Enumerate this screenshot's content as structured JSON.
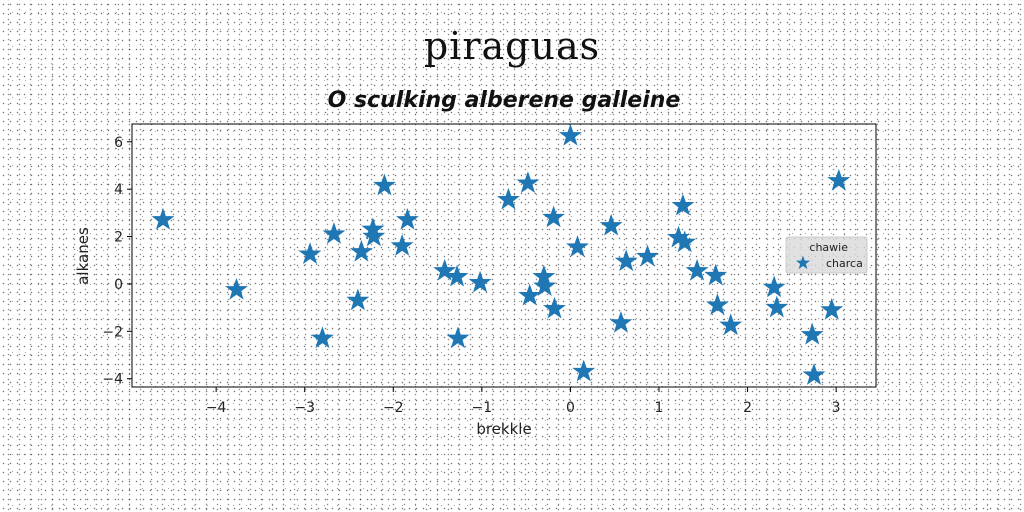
{
  "chart_data": {
    "type": "scatter",
    "suptitle": "piraguas",
    "title": "O sculking alberene galleine",
    "xlabel": "brekkle",
    "ylabel": "alkanes",
    "xlim": [
      -4.95,
      3.45
    ],
    "ylim": [
      -4.35,
      6.75
    ],
    "xticks": [
      -4,
      -3,
      -2,
      -1,
      0,
      1,
      2,
      3
    ],
    "yticks": [
      -4,
      -2,
      0,
      2,
      4,
      6
    ],
    "grid": false,
    "marker": "star",
    "color": "#1f77b4",
    "legend": {
      "placement": "right",
      "title": "chawie",
      "entries": [
        "charca"
      ]
    },
    "series": [
      {
        "name": "charca",
        "x": [
          -4.6,
          -3.77,
          -2.94,
          -2.8,
          -2.67,
          -2.4,
          -2.36,
          -2.23,
          -2.22,
          -2.1,
          -1.9,
          -1.84,
          -1.42,
          -1.28,
          -1.27,
          -1.02,
          -0.7,
          -0.48,
          -0.46,
          -0.3,
          -0.29,
          -0.19,
          -0.18,
          0.0,
          0.08,
          0.15,
          0.46,
          0.57,
          0.63,
          0.87,
          1.22,
          1.27,
          1.29,
          1.43,
          1.64,
          1.66,
          1.81,
          2.3,
          2.33,
          2.73,
          2.75,
          2.95,
          3.03
        ],
        "y": [
          2.7,
          -0.25,
          1.25,
          -2.3,
          2.1,
          -0.7,
          1.35,
          2.3,
          2.0,
          4.15,
          1.6,
          2.7,
          0.55,
          0.3,
          -2.3,
          0.05,
          3.55,
          4.25,
          -0.5,
          0.3,
          -0.1,
          2.8,
          -1.05,
          6.25,
          1.55,
          -3.7,
          2.45,
          -1.65,
          0.95,
          1.15,
          1.95,
          3.3,
          1.75,
          0.55,
          0.35,
          -0.9,
          -1.75,
          -0.15,
          -1.0,
          -2.15,
          -3.85,
          -1.1,
          4.35
        ]
      }
    ]
  }
}
